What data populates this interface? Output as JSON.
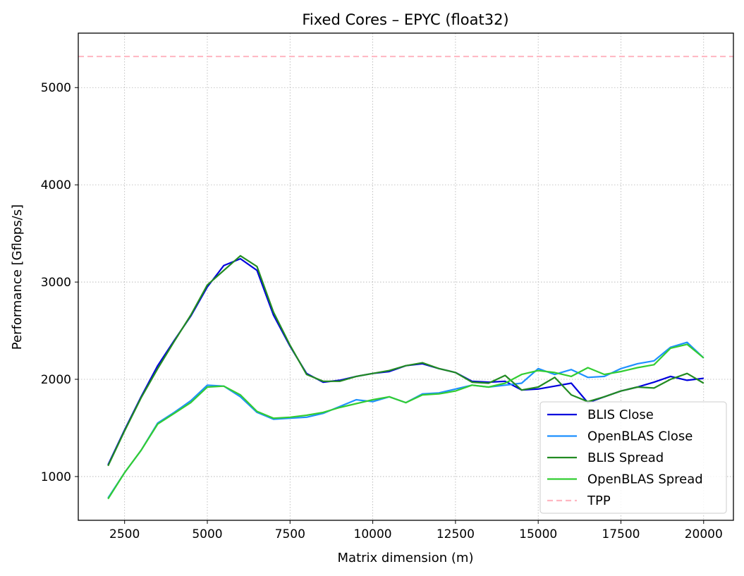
{
  "chart_data": {
    "type": "line",
    "title": "Fixed Cores – EPYC (float32)",
    "xlabel": "Matrix dimension (m)",
    "ylabel": "Performance [Gflops/s]",
    "xlim": [
      1100,
      20900
    ],
    "ylim": [
      550,
      5560
    ],
    "xticks": [
      2500,
      5000,
      7500,
      10000,
      12500,
      15000,
      17500,
      20000
    ],
    "yticks": [
      1000,
      2000,
      3000,
      4000,
      5000
    ],
    "grid": true,
    "legend_position": "lower right",
    "x": [
      2000,
      2500,
      3000,
      3500,
      4000,
      4500,
      5000,
      5500,
      6000,
      6500,
      7000,
      7500,
      8000,
      8500,
      9000,
      9500,
      10000,
      10500,
      11000,
      11500,
      12000,
      12500,
      13000,
      13500,
      14000,
      14500,
      15000,
      15500,
      16000,
      16500,
      17000,
      17500,
      18000,
      18500,
      19000,
      19500,
      20000
    ],
    "series": [
      {
        "name": "BLIS Close",
        "color": "#0000dd",
        "style": "solid",
        "values": [
          1120,
          1480,
          1820,
          2140,
          2400,
          2650,
          2950,
          3170,
          3240,
          3120,
          2660,
          2340,
          2060,
          1970,
          1990,
          2030,
          2060,
          2080,
          2140,
          2160,
          2110,
          2070,
          1980,
          1970,
          1980,
          1890,
          1900,
          1930,
          1960,
          1760,
          1820,
          1880,
          1920,
          1970,
          2030,
          1990,
          2010
        ]
      },
      {
        "name": "OpenBLAS Close",
        "color": "#1e90ff",
        "style": "solid",
        "values": [
          780,
          1040,
          1270,
          1550,
          1660,
          1780,
          1940,
          1930,
          1820,
          1660,
          1590,
          1600,
          1610,
          1650,
          1720,
          1790,
          1770,
          1820,
          1760,
          1850,
          1860,
          1900,
          1940,
          1920,
          1940,
          1960,
          2110,
          2050,
          2100,
          2020,
          2030,
          2110,
          2160,
          2190,
          2330,
          2380,
          2220
        ]
      },
      {
        "name": "BLIS Spread",
        "color": "#228b22",
        "style": "solid",
        "values": [
          1110,
          1470,
          1810,
          2110,
          2390,
          2660,
          2970,
          3120,
          3270,
          3160,
          2690,
          2350,
          2050,
          1980,
          1980,
          2030,
          2060,
          2090,
          2140,
          2170,
          2110,
          2070,
          1970,
          1960,
          2040,
          1890,
          1920,
          2020,
          1840,
          1770,
          1820,
          1880,
          1920,
          1910,
          2000,
          2060,
          1960
        ]
      },
      {
        "name": "OpenBLAS Spread",
        "color": "#32cd32",
        "style": "solid",
        "values": [
          770,
          1040,
          1270,
          1540,
          1650,
          1760,
          1920,
          1930,
          1840,
          1670,
          1600,
          1610,
          1630,
          1660,
          1710,
          1750,
          1790,
          1820,
          1760,
          1840,
          1850,
          1880,
          1940,
          1920,
          1960,
          2050,
          2090,
          2070,
          2030,
          2120,
          2050,
          2080,
          2120,
          2150,
          2320,
          2360,
          2220
        ]
      }
    ],
    "reference_line": {
      "name": "TPP",
      "value": 5320,
      "color": "#ffb6c1",
      "style": "dashed"
    }
  }
}
